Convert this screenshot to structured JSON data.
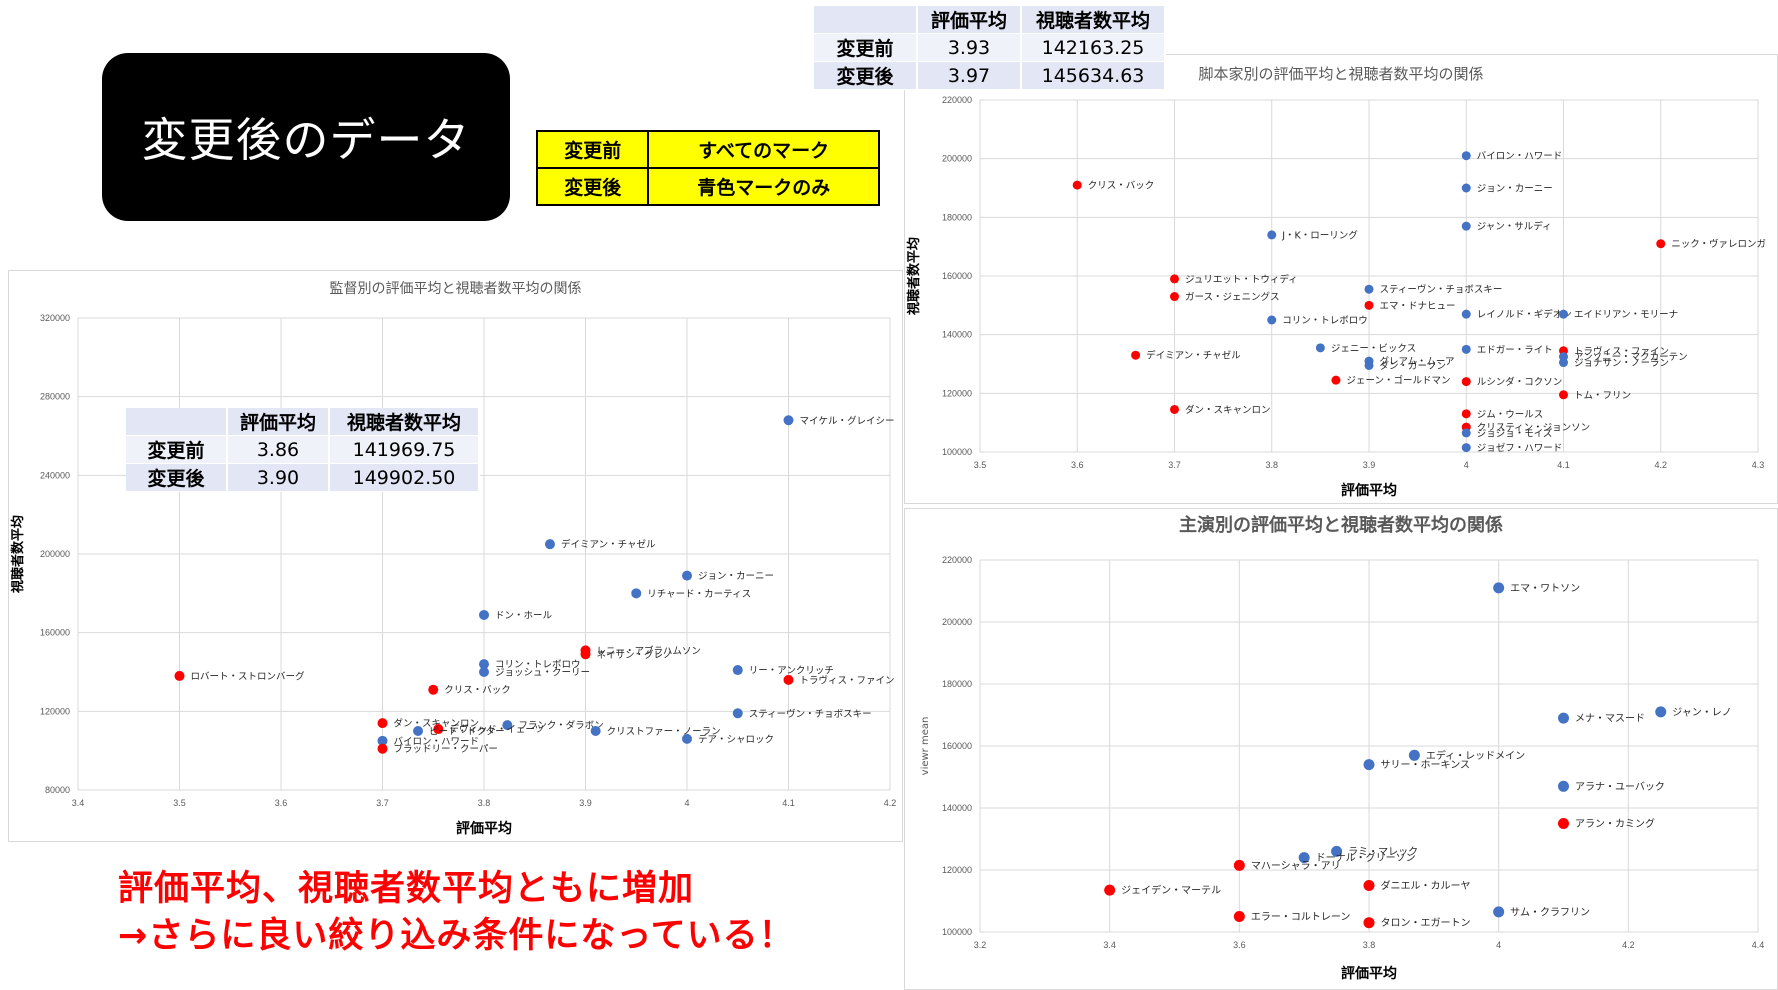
{
  "slide": {
    "title": "変更後のデータ",
    "legend": [
      {
        "label": "変更前",
        "value": "すべてのマーク"
      },
      {
        "label": "変更後",
        "value": "青色マークのみ"
      }
    ],
    "stats_top": {
      "header": [
        "",
        "評価平均",
        "視聴者数平均"
      ],
      "rows": [
        [
          "変更前",
          "3.93",
          "142163.25"
        ],
        [
          "変更後",
          "3.97",
          "145634.63"
        ]
      ]
    },
    "stats_left": {
      "header": [
        "",
        "評価平均",
        "視聴者数平均"
      ],
      "rows": [
        [
          "変更前",
          "3.86",
          "141969.75"
        ],
        [
          "変更後",
          "3.90",
          "149902.50"
        ]
      ]
    },
    "conclusion": [
      "評価平均、視聴者数平均ともに増加",
      "→さらに良い絞り込み条件になっている！"
    ]
  },
  "colors": {
    "blue": "#4472c4",
    "red": "#ff0000",
    "grid": "#d9d9d9",
    "axis_text": "#595959"
  },
  "chart_data": [
    {
      "id": "director",
      "type": "scatter",
      "title": "監督別の評価平均と視聴者数平均の関係",
      "xlabel": "評価平均",
      "ylabel": "視聴者数平均",
      "xlim": [
        3.4,
        4.2
      ],
      "ylim": [
        80000,
        320000
      ],
      "xticks": [
        "3.4",
        "3.5",
        "3.6",
        "3.7",
        "3.8",
        "3.9",
        "4",
        "4.1",
        "4.2"
      ],
      "yticks": [
        "80000",
        "120000",
        "160000",
        "200000",
        "240000",
        "280000",
        "320000"
      ],
      "grid": true,
      "points": [
        {
          "x": 4.1,
          "y": 268000,
          "label": "マイケル・グレイシー",
          "color": "blue"
        },
        {
          "x": 3.865,
          "y": 205000,
          "label": "デイミアン・チャゼル",
          "color": "blue"
        },
        {
          "x": 4.0,
          "y": 189000,
          "label": "ジョン・カーニー",
          "color": "blue"
        },
        {
          "x": 3.95,
          "y": 180000,
          "label": "リチャード・カーティス",
          "color": "blue"
        },
        {
          "x": 3.8,
          "y": 169000,
          "label": "ドン・ホール",
          "color": "blue"
        },
        {
          "x": 3.9,
          "y": 151000,
          "label": "レニー・アブラハムソン",
          "color": "red"
        },
        {
          "x": 3.9,
          "y": 149000,
          "label": "ネイサン・グレノ",
          "color": "red"
        },
        {
          "x": 3.8,
          "y": 144000,
          "label": "コリン・トレボロウ",
          "color": "blue"
        },
        {
          "x": 3.8,
          "y": 140000,
          "label": "ジョッシュ・クーリー",
          "color": "blue"
        },
        {
          "x": 4.05,
          "y": 141000,
          "label": "リー・アンクリッチ",
          "color": "blue"
        },
        {
          "x": 4.1,
          "y": 136000,
          "label": "トラヴィス・ファイン",
          "color": "red"
        },
        {
          "x": 3.5,
          "y": 138000,
          "label": "ロバート・ストロンバーグ",
          "color": "red"
        },
        {
          "x": 3.75,
          "y": 131000,
          "label": "クリス・バック",
          "color": "red"
        },
        {
          "x": 4.05,
          "y": 119000,
          "label": "スティーヴン・チョボスキー",
          "color": "blue"
        },
        {
          "x": 3.823,
          "y": 113000,
          "label": "フランク・ダラボン",
          "color": "blue"
        },
        {
          "x": 3.91,
          "y": 110000,
          "label": "クリストファー・ノーラン",
          "color": "blue"
        },
        {
          "x": 4.0,
          "y": 106000,
          "label": "テア・シャロック",
          "color": "blue"
        },
        {
          "x": 3.7,
          "y": 114000,
          "label": "ダン・スキャンロン",
          "color": "red"
        },
        {
          "x": 3.755,
          "y": 111000,
          "label": "デヴィッド・イェーツ",
          "color": "red"
        },
        {
          "x": 3.735,
          "y": 110000,
          "label": "ピート・ドクター",
          "color": "blue"
        },
        {
          "x": 3.7,
          "y": 105000,
          "label": "バイロン・ハワード",
          "color": "blue"
        },
        {
          "x": 3.7,
          "y": 101000,
          "label": "ブラッドリー・クーパー",
          "color": "red"
        }
      ]
    },
    {
      "id": "writer",
      "type": "scatter",
      "title": "脚本家別の評価平均と視聴者数平均の関係",
      "xlabel": "評価平均",
      "ylabel": "視聴者数平均",
      "xlim": [
        3.5,
        4.3
      ],
      "ylim": [
        100000,
        220000
      ],
      "xticks": [
        "3.5",
        "3.6",
        "3.7",
        "3.8",
        "3.9",
        "4",
        "4.1",
        "4.2",
        "4.3"
      ],
      "yticks": [
        "100000",
        "120000",
        "140000",
        "160000",
        "180000",
        "200000",
        "220000"
      ],
      "grid": true,
      "points": [
        {
          "x": 4.0,
          "y": 201000,
          "label": "バイロン・ハワード",
          "color": "blue"
        },
        {
          "x": 3.6,
          "y": 191000,
          "label": "クリス・バック",
          "color": "red"
        },
        {
          "x": 4.0,
          "y": 190000,
          "label": "ジョン・カーニー",
          "color": "blue"
        },
        {
          "x": 4.0,
          "y": 177000,
          "label": "ジャン・サルディ",
          "color": "blue"
        },
        {
          "x": 3.8,
          "y": 174000,
          "label": "J・K・ローリング",
          "color": "blue"
        },
        {
          "x": 4.2,
          "y": 171000,
          "label": "ニック・ヴァレロンガ",
          "color": "red"
        },
        {
          "x": 3.7,
          "y": 159000,
          "label": "ジュリエット・トウィディ",
          "color": "red"
        },
        {
          "x": 3.9,
          "y": 155500,
          "label": "スティーヴン・チョボスキー",
          "color": "blue"
        },
        {
          "x": 3.7,
          "y": 153000,
          "label": "ガース・ジェニングス",
          "color": "red"
        },
        {
          "x": 3.9,
          "y": 150000,
          "label": "エマ・ドナヒュー",
          "color": "red"
        },
        {
          "x": 4.0,
          "y": 147000,
          "label": "レイノルド・ギデオン",
          "color": "blue"
        },
        {
          "x": 4.1,
          "y": 147000,
          "label": "エイドリアン・モリーナ",
          "color": "blue"
        },
        {
          "x": 3.8,
          "y": 145000,
          "label": "コリン・トレボロウ",
          "color": "blue"
        },
        {
          "x": 3.85,
          "y": 135500,
          "label": "ジェニー・ビックス",
          "color": "blue"
        },
        {
          "x": 4.0,
          "y": 135000,
          "label": "エドガー・ライト",
          "color": "blue"
        },
        {
          "x": 4.1,
          "y": 134500,
          "label": "トラヴィス・ファイン",
          "color": "red"
        },
        {
          "x": 3.66,
          "y": 133000,
          "label": "デイミアン・チャゼル",
          "color": "red"
        },
        {
          "x": 4.1,
          "y": 132500,
          "label": "アンソニー・マクカーテン",
          "color": "blue"
        },
        {
          "x": 3.9,
          "y": 131000,
          "label": "グレアム・ムーア",
          "color": "blue"
        },
        {
          "x": 3.9,
          "y": 129500,
          "label": "ダン・ガーソン",
          "color": "blue"
        },
        {
          "x": 4.1,
          "y": 130500,
          "label": "ジョナサン・ノーラン",
          "color": "blue"
        },
        {
          "x": 3.866,
          "y": 124500,
          "label": "ジェーン・ゴールドマン",
          "color": "red"
        },
        {
          "x": 4.0,
          "y": 124000,
          "label": "ルシンダ・コクソン",
          "color": "red"
        },
        {
          "x": 4.1,
          "y": 119500,
          "label": "トム・フリン",
          "color": "red"
        },
        {
          "x": 3.7,
          "y": 114500,
          "label": "ダン・スキャンロン",
          "color": "red"
        },
        {
          "x": 4.0,
          "y": 113000,
          "label": "ジム・ウールス",
          "color": "red"
        },
        {
          "x": 4.0,
          "y": 108500,
          "label": "クリスティン・ジョンソン",
          "color": "red"
        },
        {
          "x": 4.0,
          "y": 106500,
          "label": "ジョジョ・モイズ",
          "color": "blue"
        },
        {
          "x": 4.0,
          "y": 101500,
          "label": "ジョゼフ・ハワード",
          "color": "blue"
        }
      ]
    },
    {
      "id": "actor",
      "type": "scatter",
      "title": "主演別の評価平均と視聴者数平均の関係",
      "xlabel": "評価平均",
      "ylabel": "viewr mean",
      "xlim": [
        3.2,
        4.4
      ],
      "ylim": [
        100000,
        220000
      ],
      "xticks": [
        "3.2",
        "3.4",
        "3.6",
        "3.8",
        "4",
        "4.2",
        "4.4"
      ],
      "yticks": [
        "100000",
        "120000",
        "140000",
        "160000",
        "180000",
        "200000",
        "220000"
      ],
      "grid": true,
      "points": [
        {
          "x": 4.0,
          "y": 211000,
          "label": "エマ・ワトソン",
          "color": "blue"
        },
        {
          "x": 4.25,
          "y": 171000,
          "label": "ジャン・レノ",
          "color": "blue"
        },
        {
          "x": 4.1,
          "y": 169000,
          "label": "メナ・マスード",
          "color": "blue"
        },
        {
          "x": 3.87,
          "y": 157000,
          "label": "エディ・レッドメイン",
          "color": "blue"
        },
        {
          "x": 3.8,
          "y": 154000,
          "label": "サリー・ホーキンス",
          "color": "blue"
        },
        {
          "x": 4.1,
          "y": 147000,
          "label": "アラナ・ユーバック",
          "color": "blue"
        },
        {
          "x": 4.1,
          "y": 135000,
          "label": "アラン・カミング",
          "color": "red"
        },
        {
          "x": 3.75,
          "y": 126000,
          "label": "ラミ・マレック",
          "color": "blue"
        },
        {
          "x": 3.7,
          "y": 124000,
          "label": "ドーナル・グリーソン",
          "color": "blue"
        },
        {
          "x": 3.6,
          "y": 121500,
          "label": "マハーシャラ・アリ",
          "color": "red"
        },
        {
          "x": 3.8,
          "y": 115000,
          "label": "ダニエル・カルーヤ",
          "color": "red"
        },
        {
          "x": 3.4,
          "y": 113500,
          "label": "ジェイデン・マーテル",
          "color": "red"
        },
        {
          "x": 4.0,
          "y": 106500,
          "label": "サム・クラフリン",
          "color": "blue"
        },
        {
          "x": 3.6,
          "y": 105000,
          "label": "エラー・コルトレーン",
          "color": "red"
        },
        {
          "x": 3.8,
          "y": 103000,
          "label": "タロン・エガートン",
          "color": "red"
        }
      ]
    }
  ]
}
